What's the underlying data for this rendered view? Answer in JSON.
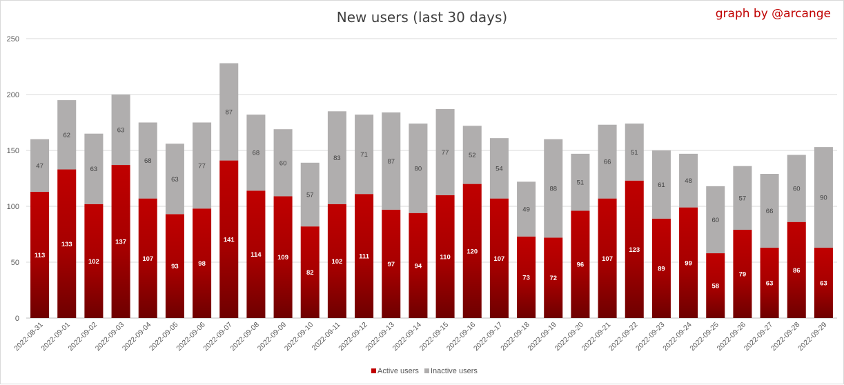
{
  "chart_data": {
    "type": "bar",
    "stacked": true,
    "title": "New users (last 30 days)",
    "credit": "graph by @arcange",
    "categories": [
      "2022-08-31",
      "2022-09-01",
      "2022-09-02",
      "2022-09-03",
      "2022-09-04",
      "2022-09-05",
      "2022-09-06",
      "2022-09-07",
      "2022-09-08",
      "2022-09-09",
      "2022-09-10",
      "2022-09-11",
      "2022-09-12",
      "2022-09-13",
      "2022-09-14",
      "2022-09-15",
      "2022-09-16",
      "2022-09-17",
      "2022-09-18",
      "2022-09-19",
      "2022-09-20",
      "2022-09-21",
      "2022-09-22",
      "2022-09-23",
      "2022-09-24",
      "2022-09-25",
      "2022-09-26",
      "2022-09-27",
      "2022-09-28",
      "2022-09-29"
    ],
    "series": [
      {
        "name": "Active users",
        "color": "#c00000",
        "values": [
          113,
          133,
          102,
          137,
          107,
          93,
          98,
          141,
          114,
          109,
          82,
          102,
          111,
          97,
          94,
          110,
          120,
          107,
          73,
          72,
          96,
          107,
          123,
          89,
          99,
          58,
          79,
          63,
          86,
          63
        ]
      },
      {
        "name": "Inactive users",
        "color": "#b0aeae",
        "values": [
          47,
          62,
          63,
          63,
          68,
          63,
          77,
          87,
          68,
          60,
          57,
          83,
          71,
          87,
          80,
          77,
          52,
          54,
          49,
          88,
          51,
          66,
          51,
          61,
          48,
          60,
          57,
          66,
          60,
          90
        ]
      }
    ],
    "ylim": [
      0,
      250
    ],
    "yticks": [
      0,
      50,
      100,
      150,
      200,
      250
    ],
    "grid": true,
    "legend_position": "bottom"
  }
}
